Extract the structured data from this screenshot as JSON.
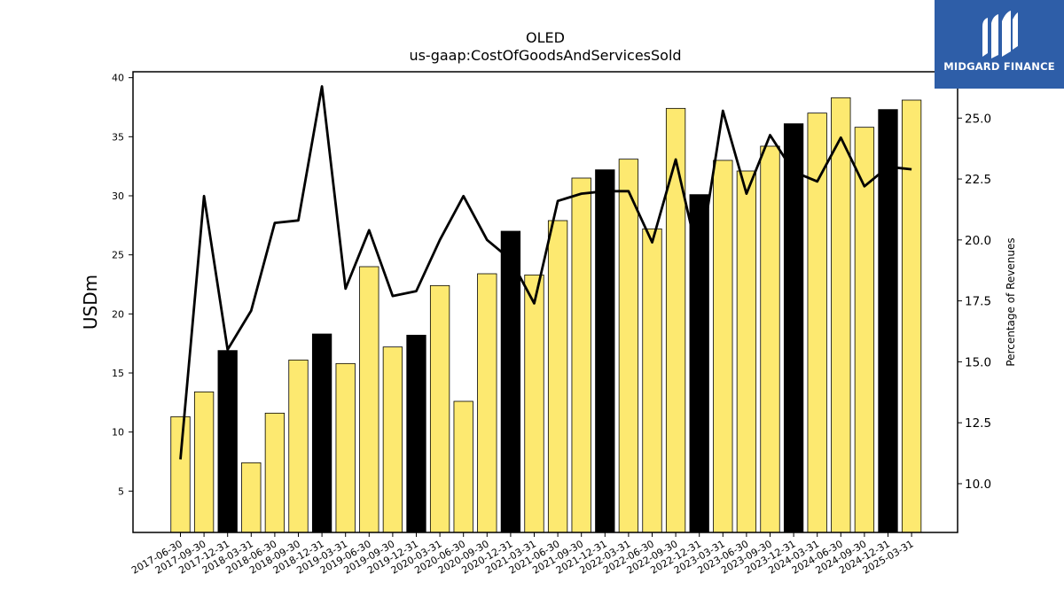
{
  "chart_data": {
    "type": "bar",
    "title": "OLED",
    "subtitle": "us-gaap:CostOfGoodsAndServicesSold",
    "ylabel": "USDm",
    "y2label": "Percentage of Revenues",
    "ylim": [
      1.5,
      40.5
    ],
    "y2lim": [
      8.0,
      26.9
    ],
    "yticks": [
      5,
      10,
      15,
      20,
      25,
      30,
      35,
      40
    ],
    "y2ticks": [
      "10.0",
      "12.5",
      "15.0",
      "17.5",
      "20.0",
      "22.5",
      "25.0"
    ],
    "categories": [
      "2017-06-30",
      "2017-09-30",
      "2017-12-31",
      "2018-03-31",
      "2018-06-30",
      "2018-09-30",
      "2018-12-31",
      "2019-03-31",
      "2019-06-30",
      "2019-09-30",
      "2019-12-31",
      "2020-03-31",
      "2020-06-30",
      "2020-09-30",
      "2020-12-31",
      "2021-03-31",
      "2021-06-30",
      "2021-09-30",
      "2021-12-31",
      "2022-03-31",
      "2022-06-30",
      "2022-09-30",
      "2022-12-31",
      "2023-03-31",
      "2023-06-30",
      "2023-09-30",
      "2023-12-31",
      "2024-03-31",
      "2024-06-30",
      "2024-09-30",
      "2024-12-31",
      "2025-03-31"
    ],
    "series": [
      {
        "kind": "bar",
        "values": [
          11.3,
          13.4,
          16.9,
          7.4,
          11.6,
          16.1,
          18.3,
          15.8,
          24.0,
          17.2,
          18.2,
          22.4,
          12.6,
          23.4,
          27.0,
          23.3,
          27.9,
          31.5,
          32.2,
          33.1,
          27.2,
          37.4,
          30.1,
          33.0,
          32.1,
          34.2,
          36.1,
          37.0,
          38.3,
          35.8,
          37.3,
          38.1
        ]
      },
      {
        "kind": "line",
        "axis": "right",
        "values": [
          11.0,
          21.8,
          15.5,
          17.1,
          20.7,
          20.8,
          26.3,
          18.0,
          20.4,
          17.7,
          17.9,
          20.0,
          21.8,
          20.0,
          19.2,
          17.4,
          21.6,
          21.9,
          22.0,
          22.0,
          19.9,
          23.3,
          19.1,
          25.3,
          21.9,
          24.3,
          22.8,
          22.4,
          24.2,
          22.2,
          23.0,
          22.9
        ]
      }
    ],
    "colors": {
      "bar_default": "#fde970",
      "bar_highlight": "#000000",
      "line": "#000000"
    },
    "highlight_categories": [
      "2017-12-31",
      "2018-12-31",
      "2019-12-31",
      "2020-12-31",
      "2021-12-31",
      "2022-12-31",
      "2023-12-31",
      "2024-12-31"
    ]
  },
  "logo": {
    "text": "MIDGARD FINANCE",
    "background": "#2e5ea8"
  }
}
